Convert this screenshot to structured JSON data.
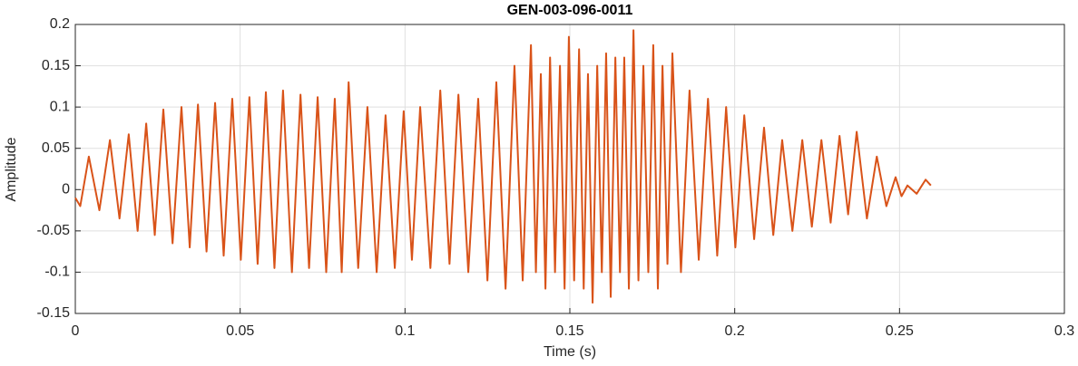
{
  "chart_data": {
    "type": "line",
    "title": "GEN-003-096-0011",
    "xlabel": "Time (s)",
    "ylabel": "Amplitude",
    "xlim": [
      0,
      0.3
    ],
    "xticks": [
      0,
      0.05,
      0.1,
      0.15,
      0.2,
      0.25,
      0.3
    ],
    "ylim": [
      -0.15,
      0.2
    ],
    "yticks": [
      -0.15,
      -0.1,
      -0.05,
      0,
      0.05,
      0.1,
      0.15,
      0.2
    ],
    "grid": true,
    "series": [
      {
        "color": "#D95319",
        "x": [
          0,
          0.0015,
          0.0041,
          0.0073,
          0.0105,
          0.0134,
          0.0162,
          0.0189,
          0.0215,
          0.0241,
          0.0267,
          0.0295,
          0.0322,
          0.0347,
          0.0372,
          0.0398,
          0.0424,
          0.045,
          0.0476,
          0.0502,
          0.0528,
          0.0553,
          0.0578,
          0.0604,
          0.063,
          0.0657,
          0.0683,
          0.0709,
          0.0735,
          0.0761,
          0.0787,
          0.0808,
          0.0829,
          0.0858,
          0.0886,
          0.0914,
          0.0941,
          0.0969,
          0.0996,
          0.1021,
          0.1046,
          0.1077,
          0.1107,
          0.1135,
          0.1162,
          0.1192,
          0.1222,
          0.125,
          0.1277,
          0.1305,
          0.1332,
          0.1357,
          0.1382,
          0.1397,
          0.1412,
          0.1426,
          0.144,
          0.1455,
          0.147,
          0.1484,
          0.1497,
          0.1513,
          0.1528,
          0.1542,
          0.1555,
          0.1569,
          0.1583,
          0.1597,
          0.161,
          0.1624,
          0.1638,
          0.1652,
          0.1665,
          0.1679,
          0.1693,
          0.1708,
          0.1723,
          0.1738,
          0.1753,
          0.1767,
          0.1781,
          0.1796,
          0.1811,
          0.1837,
          0.1863,
          0.1891,
          0.1919,
          0.1947,
          0.1974,
          0.2002,
          0.2029,
          0.2059,
          0.2089,
          0.2117,
          0.2144,
          0.2175,
          0.2205,
          0.2234,
          0.2263,
          0.2291,
          0.2318,
          0.2344,
          0.237,
          0.2401,
          0.2431,
          0.246,
          0.2488,
          0.2506,
          0.2524,
          0.2552,
          0.2579,
          0.2595
        ],
        "values": [
          -0.01,
          -0.02,
          0.04,
          -0.025,
          0.06,
          -0.035,
          0.067,
          -0.05,
          0.08,
          -0.055,
          0.097,
          -0.065,
          0.1,
          -0.07,
          0.103,
          -0.075,
          0.105,
          -0.08,
          0.11,
          -0.085,
          0.112,
          -0.09,
          0.118,
          -0.095,
          0.12,
          -0.1,
          0.115,
          -0.095,
          0.112,
          -0.1,
          0.11,
          -0.1,
          0.13,
          -0.095,
          0.1,
          -0.1,
          0.09,
          -0.095,
          0.095,
          -0.085,
          0.1,
          -0.095,
          0.12,
          -0.09,
          0.115,
          -0.1,
          0.11,
          -0.11,
          0.13,
          -0.12,
          0.15,
          -0.11,
          0.175,
          -0.1,
          0.14,
          -0.12,
          0.16,
          -0.1,
          0.15,
          -0.12,
          0.185,
          -0.11,
          0.17,
          -0.12,
          0.14,
          -0.137,
          0.15,
          -0.1,
          0.165,
          -0.13,
          0.16,
          -0.1,
          0.16,
          -0.12,
          0.193,
          -0.11,
          0.15,
          -0.1,
          0.175,
          -0.12,
          0.15,
          -0.09,
          0.165,
          -0.1,
          0.12,
          -0.085,
          0.11,
          -0.08,
          0.1,
          -0.07,
          0.09,
          -0.06,
          0.075,
          -0.055,
          0.06,
          -0.05,
          0.06,
          -0.045,
          0.06,
          -0.04,
          0.065,
          -0.03,
          0.07,
          -0.035,
          0.04,
          -0.02,
          0.015,
          -0.008,
          0.005,
          -0.005,
          0.012,
          0.005
        ]
      }
    ]
  }
}
